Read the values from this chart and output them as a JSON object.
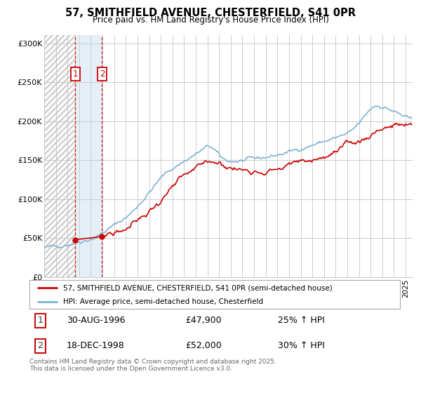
{
  "title": "57, SMITHFIELD AVENUE, CHESTERFIELD, S41 0PR",
  "subtitle": "Price paid vs. HM Land Registry's House Price Index (HPI)",
  "legend_line1": "57, SMITHFIELD AVENUE, CHESTERFIELD, S41 0PR (semi-detached house)",
  "legend_line2": "HPI: Average price, semi-detached house, Chesterfield",
  "purchase1_date": "30-AUG-1996",
  "purchase1_price": 47900,
  "purchase1_hpi": "25% ↑ HPI",
  "purchase2_date": "18-DEC-1998",
  "purchase2_price": 52000,
  "purchase2_hpi": "30% ↑ HPI",
  "footnote": "Contains HM Land Registry data © Crown copyright and database right 2025.\nThis data is licensed under the Open Government Licence v3.0.",
  "property_color": "#cc0000",
  "hpi_color": "#7fb3d3",
  "background_color": "#ffffff",
  "grid_color": "#cccccc",
  "ylim": [
    0,
    310000
  ],
  "yticks": [
    0,
    50000,
    100000,
    150000,
    200000,
    250000,
    300000
  ],
  "ytick_labels": [
    "£0",
    "£50K",
    "£100K",
    "£150K",
    "£200K",
    "£250K",
    "£300K"
  ],
  "xstart": 1994,
  "xend": 2025,
  "p1_year": 1996,
  "p1_month": 8,
  "p1_day": 30,
  "p2_year": 1998,
  "p2_month": 12,
  "p2_day": 18
}
